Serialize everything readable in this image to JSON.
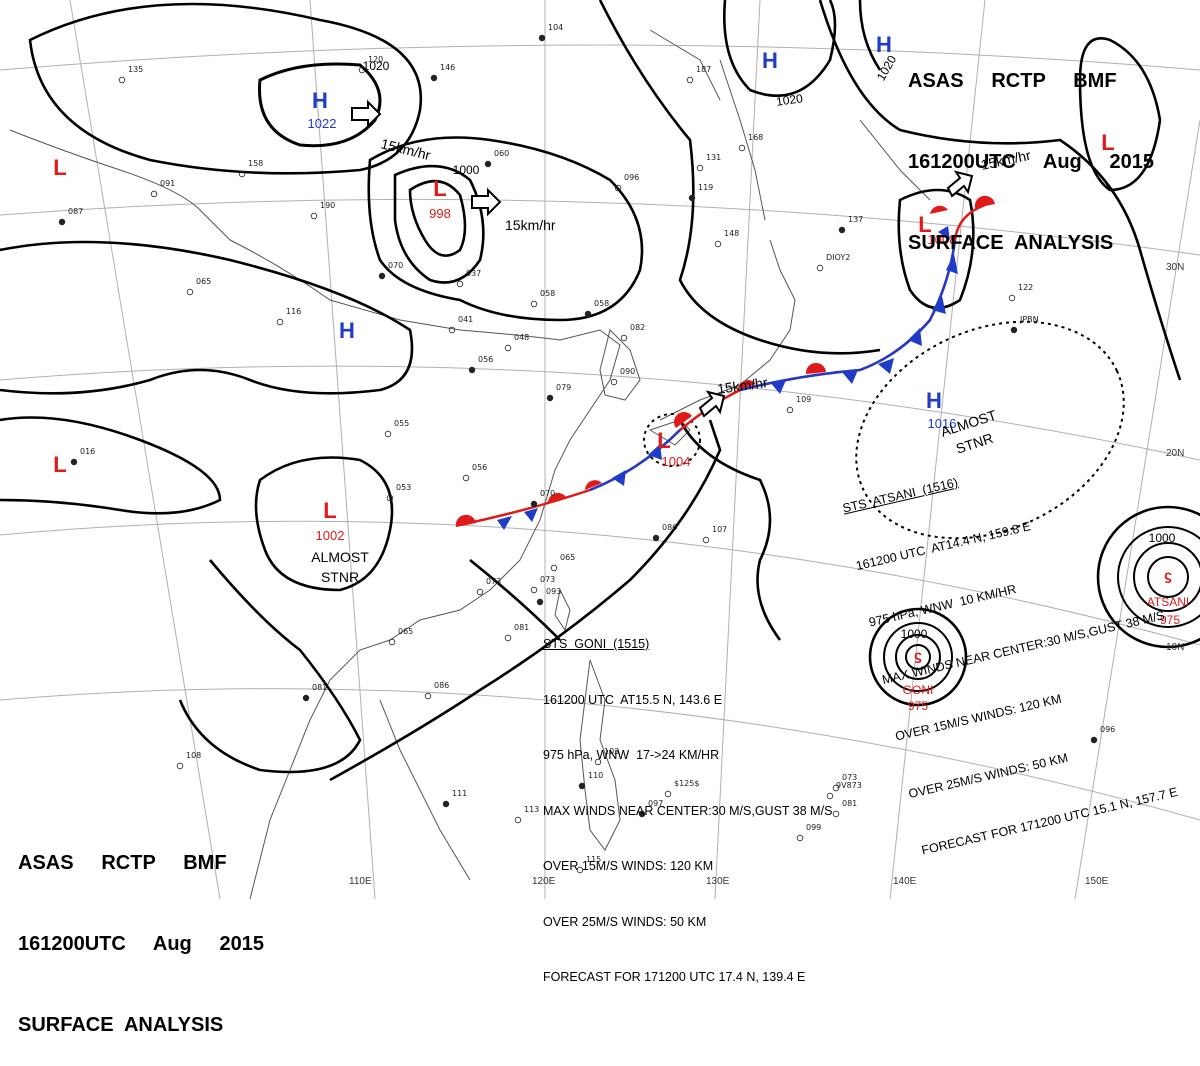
{
  "header_top_right": {
    "line1": "ASAS     RCTP     BMF",
    "line2": "161200UTC     Aug     2015",
    "line3": "SURFACE  ANALYSIS"
  },
  "header_bottom_left": {
    "line1": "ASAS     RCTP     BMF",
    "line2": "161200UTC     Aug     2015",
    "line3": "SURFACE  ANALYSIS"
  },
  "longitude_labels": [
    "110E",
    "120E",
    "130E",
    "140E",
    "150E"
  ],
  "latitude_labels": [
    "30N",
    "20N",
    "10N"
  ],
  "pressure_centers": [
    {
      "type": "H",
      "value": "1022",
      "color": "#1e3cc8"
    },
    {
      "type": "L",
      "value": "998",
      "color": "#e01a1a"
    },
    {
      "type": "H",
      "value": "",
      "color": "#1e3cc8"
    },
    {
      "type": "L",
      "value": "",
      "color": "#e01a1a"
    },
    {
      "type": "L",
      "value": "",
      "color": "#e01a1a"
    },
    {
      "type": "L",
      "value": "1002",
      "color": "#e01a1a"
    },
    {
      "type": "H",
      "value": "",
      "color": "#1e3cc8"
    },
    {
      "type": "H",
      "value": "",
      "color": "#1e3cc8"
    },
    {
      "type": "L",
      "value": "",
      "color": "#e01a1a"
    },
    {
      "type": "L",
      "value": "1008",
      "color": "#e01a1a"
    },
    {
      "type": "L",
      "value": "1004",
      "color": "#e01a1a"
    },
    {
      "type": "H",
      "value": "1016",
      "color": "#1e3cc8"
    }
  ],
  "isobar_labels": [
    "1020",
    "1000",
    "1020",
    "1020",
    "1000",
    "1000"
  ],
  "motion_labels": [
    "15km/hr",
    "15km/hr",
    "15km/hr",
    "15km/hr"
  ],
  "stationary_labels": [
    {
      "line1": "ALMOST",
      "line2": "STNR"
    },
    {
      "line1": "ALMOST",
      "line2": "STNR"
    }
  ],
  "typhoons": [
    {
      "name": "GONI",
      "pressure": "975"
    },
    {
      "name": "ATSANI",
      "pressure": "975"
    }
  ],
  "goni_bulletin": [
    "STS  GONI  (1515)",
    "161200 UTC  AT15.5 N, 143.6 E",
    "975 hPa, WNW  17->24 KM/HR",
    "MAX WINDS NEAR CENTER:30 M/S,GUST 38 M/S",
    "OVER 15M/S WINDS: 120 KM",
    "OVER 25M/S WINDS: 50 KM",
    "FORECAST FOR 171200 UTC 17.4 N, 139.4 E"
  ],
  "atsani_bulletin": [
    "STS  ATSANI  (1516)",
    "161200 UTC  AT14.4 N, 159.8 E",
    "975 hPa, WNW  10 KM/HR",
    "MAX WINDS NEAR CENTER:30 M/S,GUST 38 M/S",
    "OVER 15M/S WINDS: 120 KM",
    "OVER 25M/S WINDS: 50 KM",
    "FORECAST FOR 171200 UTC 15.1 N, 157.7 E"
  ],
  "station_labels": [
    {
      "t": "104"
    },
    {
      "t": "135"
    },
    {
      "t": "120"
    },
    {
      "t": "146"
    },
    {
      "t": "187"
    },
    {
      "t": "091"
    },
    {
      "t": "087"
    },
    {
      "t": "158"
    },
    {
      "t": "190"
    },
    {
      "t": "060"
    },
    {
      "t": "096"
    },
    {
      "t": "131"
    },
    {
      "t": "119"
    },
    {
      "t": "148"
    },
    {
      "t": "168"
    },
    {
      "t": "137"
    },
    {
      "t": "065"
    },
    {
      "t": "116"
    },
    {
      "t": "070"
    },
    {
      "t": "037"
    },
    {
      "t": "058"
    },
    {
      "t": "058"
    },
    {
      "t": "041"
    },
    {
      "t": "048"
    },
    {
      "t": "056"
    },
    {
      "t": "082"
    },
    {
      "t": "090"
    },
    {
      "t": "079"
    },
    {
      "t": "109"
    },
    {
      "t": "055"
    },
    {
      "t": "016"
    },
    {
      "t": "056"
    },
    {
      "t": "053"
    },
    {
      "t": "070"
    },
    {
      "t": "073"
    },
    {
      "t": "065"
    },
    {
      "t": "086"
    },
    {
      "t": "107"
    },
    {
      "t": "073"
    },
    {
      "t": "093"
    },
    {
      "t": "065"
    },
    {
      "t": "081"
    },
    {
      "t": "081"
    },
    {
      "t": "086"
    },
    {
      "t": "108"
    },
    {
      "t": "111"
    },
    {
      "t": "113"
    },
    {
      "t": "103"
    },
    {
      "t": "097"
    },
    {
      "t": "115"
    },
    {
      "t": "099"
    },
    {
      "t": "096"
    },
    {
      "t": "073"
    },
    {
      "t": "081"
    },
    {
      "t": "110"
    },
    {
      "t": "122"
    },
    {
      "t": "DIOY2"
    },
    {
      "t": "JPBN"
    },
    {
      "t": "9V873"
    },
    {
      "t": "$125$"
    }
  ]
}
